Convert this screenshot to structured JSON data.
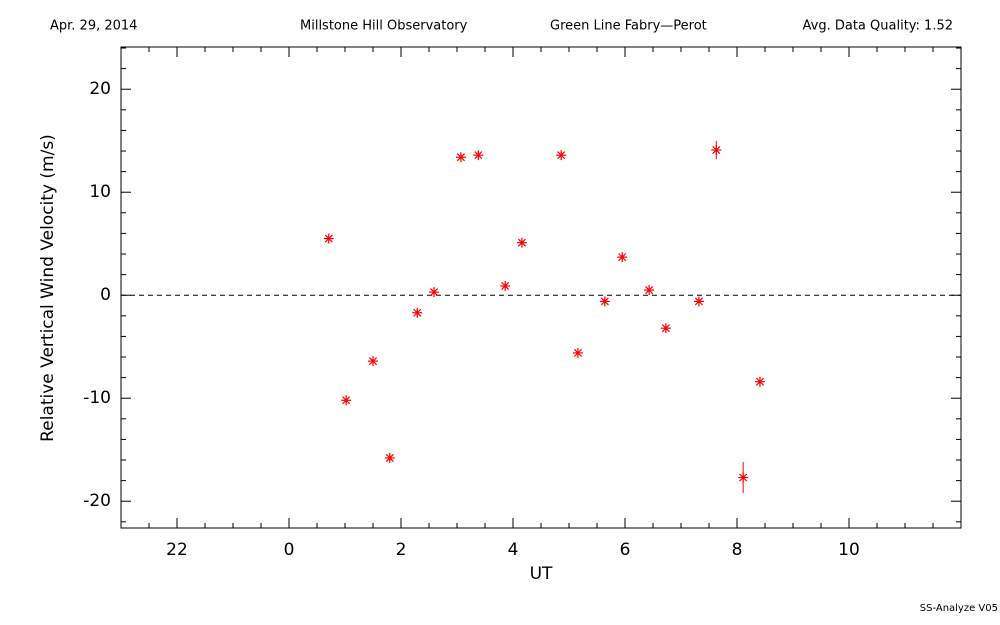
{
  "chart_data": {
    "type": "scatter",
    "header": {
      "date": "Apr. 29, 2014",
      "site": "Millstone Hill Observatory",
      "instrument": "Green Line Fabry—Perot",
      "quality": "Avg. Data Quality: 1.52"
    },
    "xlabel": "UT",
    "ylabel": "Relative Vertical Wind Velocity (m/s)",
    "footer": "SS-Analyze V05",
    "xlim": [
      -3,
      12
    ],
    "xticks": [
      {
        "value": -2,
        "label": "22"
      },
      0,
      2,
      4,
      6,
      8,
      10
    ],
    "ylim": [
      -22.6,
      24.1
    ],
    "yticks": [
      -20,
      -10,
      0,
      10,
      20
    ],
    "reference_line": 0,
    "color": "#ff0000",
    "x": [
      0.71,
      1.02,
      1.5,
      1.8,
      2.29,
      2.59,
      3.07,
      3.38,
      3.86,
      4.16,
      4.86,
      5.16,
      5.64,
      5.95,
      6.43,
      6.73,
      7.32,
      7.63,
      8.11,
      8.41
    ],
    "values": [
      5.5,
      -10.2,
      -6.4,
      -15.8,
      -1.7,
      0.3,
      13.4,
      13.6,
      0.9,
      5.1,
      13.6,
      -5.6,
      -0.6,
      3.7,
      0.5,
      -3.2,
      -0.6,
      14.1,
      -17.7,
      -8.4
    ],
    "errors": [
      0.3,
      0.3,
      0.3,
      0.3,
      0.3,
      0.3,
      0.3,
      0.3,
      0.3,
      0.3,
      0.3,
      0.3,
      0.3,
      0.3,
      0.3,
      0.3,
      0.3,
      0.9,
      1.5,
      0.3
    ]
  }
}
